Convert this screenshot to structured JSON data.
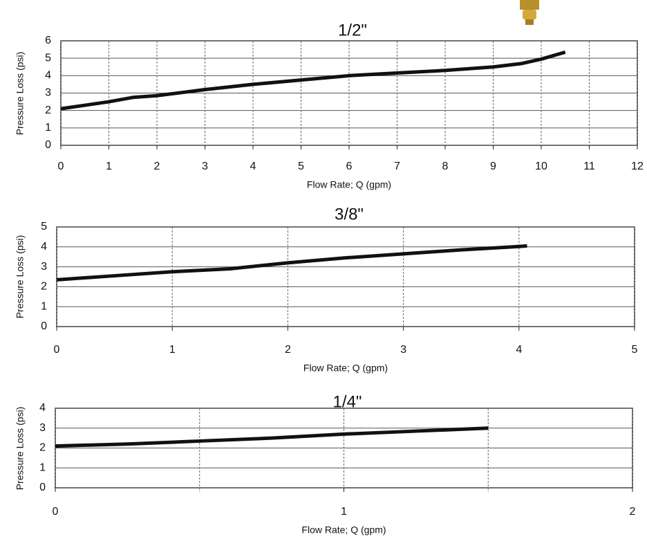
{
  "chart_data": [
    {
      "type": "line",
      "title": "1/2\"",
      "x_label": "Flow Rate; Q (gpm)",
      "y_label": "Pressure Loss (psi)",
      "x": [
        0,
        1,
        1.5,
        2,
        3,
        4,
        5,
        6,
        7,
        8,
        9,
        9.6,
        10,
        10.5
      ],
      "values": [
        2.1,
        2.5,
        2.75,
        2.85,
        3.2,
        3.5,
        3.75,
        4.0,
        4.15,
        4.3,
        4.5,
        4.7,
        4.95,
        5.35
      ],
      "color": "#111111",
      "xlim": [
        0,
        12
      ],
      "ylim": [
        0,
        6
      ],
      "xticks": [
        0,
        1,
        2,
        3,
        4,
        5,
        6,
        7,
        8,
        9,
        10,
        11,
        12
      ],
      "yticks": [
        0,
        1,
        2,
        3,
        4,
        5,
        6
      ],
      "grid": true
    },
    {
      "type": "line",
      "title": "3/8\"",
      "x_label": "Flow Rate; Q (gpm)",
      "y_label": "Pressure Loss (psi)",
      "x": [
        0,
        0.5,
        1,
        1.5,
        2,
        2.5,
        3,
        3.5,
        4,
        4.07
      ],
      "values": [
        2.35,
        2.55,
        2.75,
        2.9,
        3.2,
        3.45,
        3.65,
        3.85,
        4.02,
        4.05
      ],
      "color": "#111111",
      "xlim": [
        0,
        5
      ],
      "ylim": [
        0,
        5
      ],
      "xticks": [
        0,
        1,
        2,
        3,
        4,
        5
      ],
      "yticks": [
        0,
        1,
        2,
        3,
        4,
        5
      ],
      "grid": true
    },
    {
      "type": "line",
      "title": "1/4\"",
      "x_label": "Flow Rate; Q (gpm)",
      "y_label": "Pressure Loss (psi)",
      "x": [
        0,
        0.25,
        0.5,
        0.75,
        1,
        1.25,
        1.5
      ],
      "values": [
        2.1,
        2.2,
        2.35,
        2.5,
        2.7,
        2.85,
        3.0
      ],
      "color": "#111111",
      "xlim": [
        0,
        2
      ],
      "ylim": [
        0,
        4
      ],
      "xticks": [
        0,
        1,
        2
      ],
      "x_minor_grid": [
        0.5,
        1.5
      ],
      "yticks": [
        0,
        1,
        2,
        3,
        4
      ],
      "grid": true
    }
  ]
}
